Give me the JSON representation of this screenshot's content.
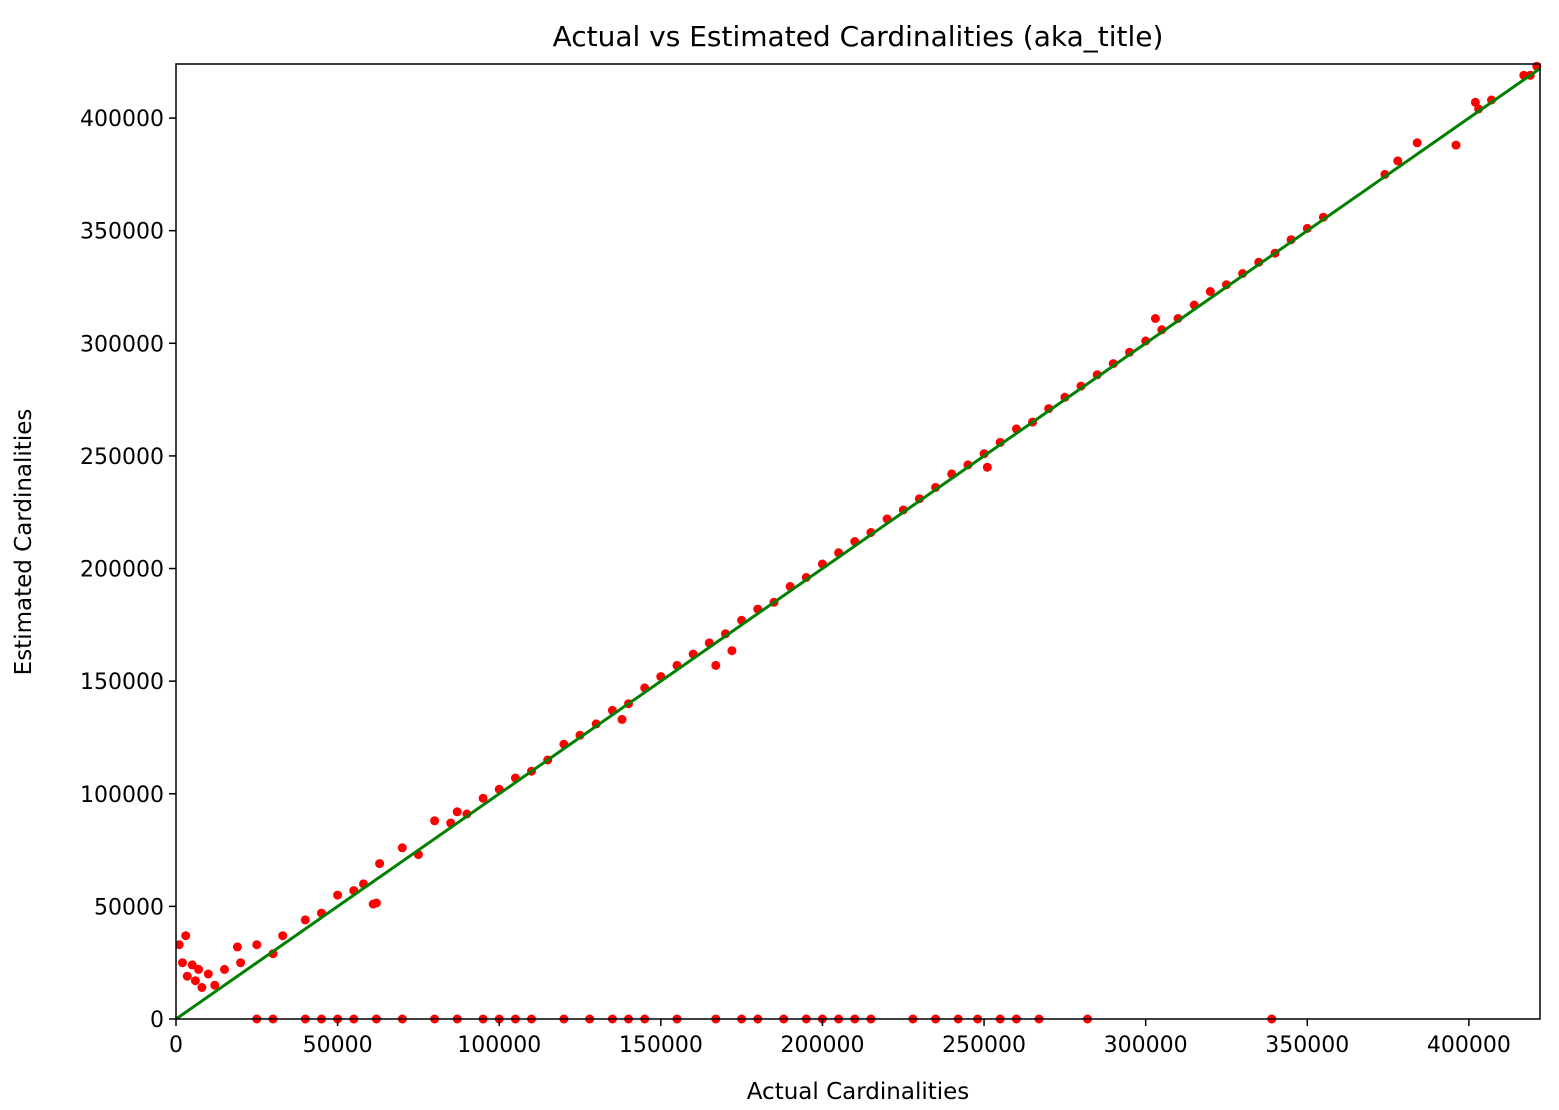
{
  "chart_data": {
    "type": "scatter",
    "title": "Actual vs Estimated Cardinalities (aka_title)",
    "xlabel": "Actual Cardinalities",
    "ylabel": "Estimated Cardinalities",
    "xlim": [
      0,
      422000
    ],
    "ylim": [
      0,
      424000
    ],
    "grid": false,
    "x_ticks": [
      0,
      50000,
      100000,
      150000,
      200000,
      250000,
      300000,
      350000,
      400000
    ],
    "y_ticks": [
      0,
      50000,
      100000,
      150000,
      200000,
      250000,
      300000,
      350000,
      400000
    ],
    "colors": {
      "points": "#ff0000",
      "reference_line": "#008000",
      "axes": "#000000"
    },
    "reference_line": {
      "from": [
        0,
        0
      ],
      "to": [
        422000,
        422000
      ]
    },
    "series": [
      {
        "values": [
          [
            1000,
            33000
          ],
          [
            2000,
            25000
          ],
          [
            3000,
            37000
          ],
          [
            3500,
            19000
          ],
          [
            5000,
            24000
          ],
          [
            6000,
            17000
          ],
          [
            7000,
            22000
          ],
          [
            8000,
            14000
          ],
          [
            10000,
            20000
          ],
          [
            12000,
            15000
          ],
          [
            15000,
            22000
          ],
          [
            19000,
            32000
          ],
          [
            20000,
            25000
          ],
          [
            25000,
            33000
          ],
          [
            30000,
            29000
          ],
          [
            33000,
            37000
          ],
          [
            40000,
            44000
          ],
          [
            45000,
            47000
          ],
          [
            50000,
            55000
          ],
          [
            55000,
            57000
          ],
          [
            58000,
            60000
          ],
          [
            61000,
            51000
          ],
          [
            62000,
            51500
          ],
          [
            63000,
            69000
          ],
          [
            70000,
            76000
          ],
          [
            75000,
            73000
          ],
          [
            80000,
            88000
          ],
          [
            85000,
            87000
          ],
          [
            87000,
            92000
          ],
          [
            90000,
            91000
          ],
          [
            95000,
            98000
          ],
          [
            100000,
            102000
          ],
          [
            105000,
            107000
          ],
          [
            110000,
            110000
          ],
          [
            115000,
            115000
          ],
          [
            120000,
            122000
          ],
          [
            125000,
            126000
          ],
          [
            130000,
            131000
          ],
          [
            135000,
            137000
          ],
          [
            138000,
            133000
          ],
          [
            140000,
            140000
          ],
          [
            145000,
            147000
          ],
          [
            150000,
            152000
          ],
          [
            155000,
            157000
          ],
          [
            160000,
            162000
          ],
          [
            165000,
            167000
          ],
          [
            167000,
            157000
          ],
          [
            170000,
            171000
          ],
          [
            172000,
            163500
          ],
          [
            175000,
            177000
          ],
          [
            180000,
            182000
          ],
          [
            185000,
            185000
          ],
          [
            190000,
            192000
          ],
          [
            195000,
            196000
          ],
          [
            200000,
            202000
          ],
          [
            205000,
            207000
          ],
          [
            210000,
            212000
          ],
          [
            215000,
            216000
          ],
          [
            220000,
            222000
          ],
          [
            225000,
            226000
          ],
          [
            230000,
            231000
          ],
          [
            235000,
            236000
          ],
          [
            240000,
            242000
          ],
          [
            245000,
            246000
          ],
          [
            250000,
            251000
          ],
          [
            251000,
            245000
          ],
          [
            255000,
            256000
          ],
          [
            260000,
            262000
          ],
          [
            265000,
            265000
          ],
          [
            270000,
            271000
          ],
          [
            275000,
            276000
          ],
          [
            280000,
            281000
          ],
          [
            285000,
            286000
          ],
          [
            290000,
            291000
          ],
          [
            295000,
            296000
          ],
          [
            300000,
            301000
          ],
          [
            303000,
            311000
          ],
          [
            305000,
            306000
          ],
          [
            310000,
            311000
          ],
          [
            315000,
            317000
          ],
          [
            320000,
            323000
          ],
          [
            325000,
            326000
          ],
          [
            330000,
            331000
          ],
          [
            335000,
            336000
          ],
          [
            340000,
            340000
          ],
          [
            345000,
            346000
          ],
          [
            350000,
            351000
          ],
          [
            355000,
            356000
          ],
          [
            374000,
            375000
          ],
          [
            378000,
            381000
          ],
          [
            384000,
            389000
          ],
          [
            396000,
            388000
          ],
          [
            402000,
            407000
          ],
          [
            403000,
            404000
          ],
          [
            407000,
            408000
          ],
          [
            417000,
            419000
          ],
          [
            419000,
            419000
          ],
          [
            421000,
            423000
          ],
          [
            25000,
            0
          ],
          [
            30000,
            0
          ],
          [
            40000,
            0
          ],
          [
            45000,
            0
          ],
          [
            50000,
            0
          ],
          [
            55000,
            0
          ],
          [
            62000,
            0
          ],
          [
            70000,
            0
          ],
          [
            80000,
            0
          ],
          [
            87000,
            0
          ],
          [
            95000,
            0
          ],
          [
            100000,
            0
          ],
          [
            105000,
            0
          ],
          [
            110000,
            0
          ],
          [
            120000,
            0
          ],
          [
            128000,
            0
          ],
          [
            135000,
            0
          ],
          [
            140000,
            0
          ],
          [
            145000,
            0
          ],
          [
            155000,
            0
          ],
          [
            167000,
            0
          ],
          [
            175000,
            0
          ],
          [
            180000,
            0
          ],
          [
            188000,
            0
          ],
          [
            195000,
            0
          ],
          [
            200000,
            0
          ],
          [
            205000,
            0
          ],
          [
            210000,
            0
          ],
          [
            215000,
            0
          ],
          [
            228000,
            0
          ],
          [
            235000,
            0
          ],
          [
            242000,
            0
          ],
          [
            248000,
            0
          ],
          [
            255000,
            0
          ],
          [
            260000,
            0
          ],
          [
            267000,
            0
          ],
          [
            282000,
            0
          ],
          [
            339000,
            0
          ]
        ]
      }
    ]
  }
}
